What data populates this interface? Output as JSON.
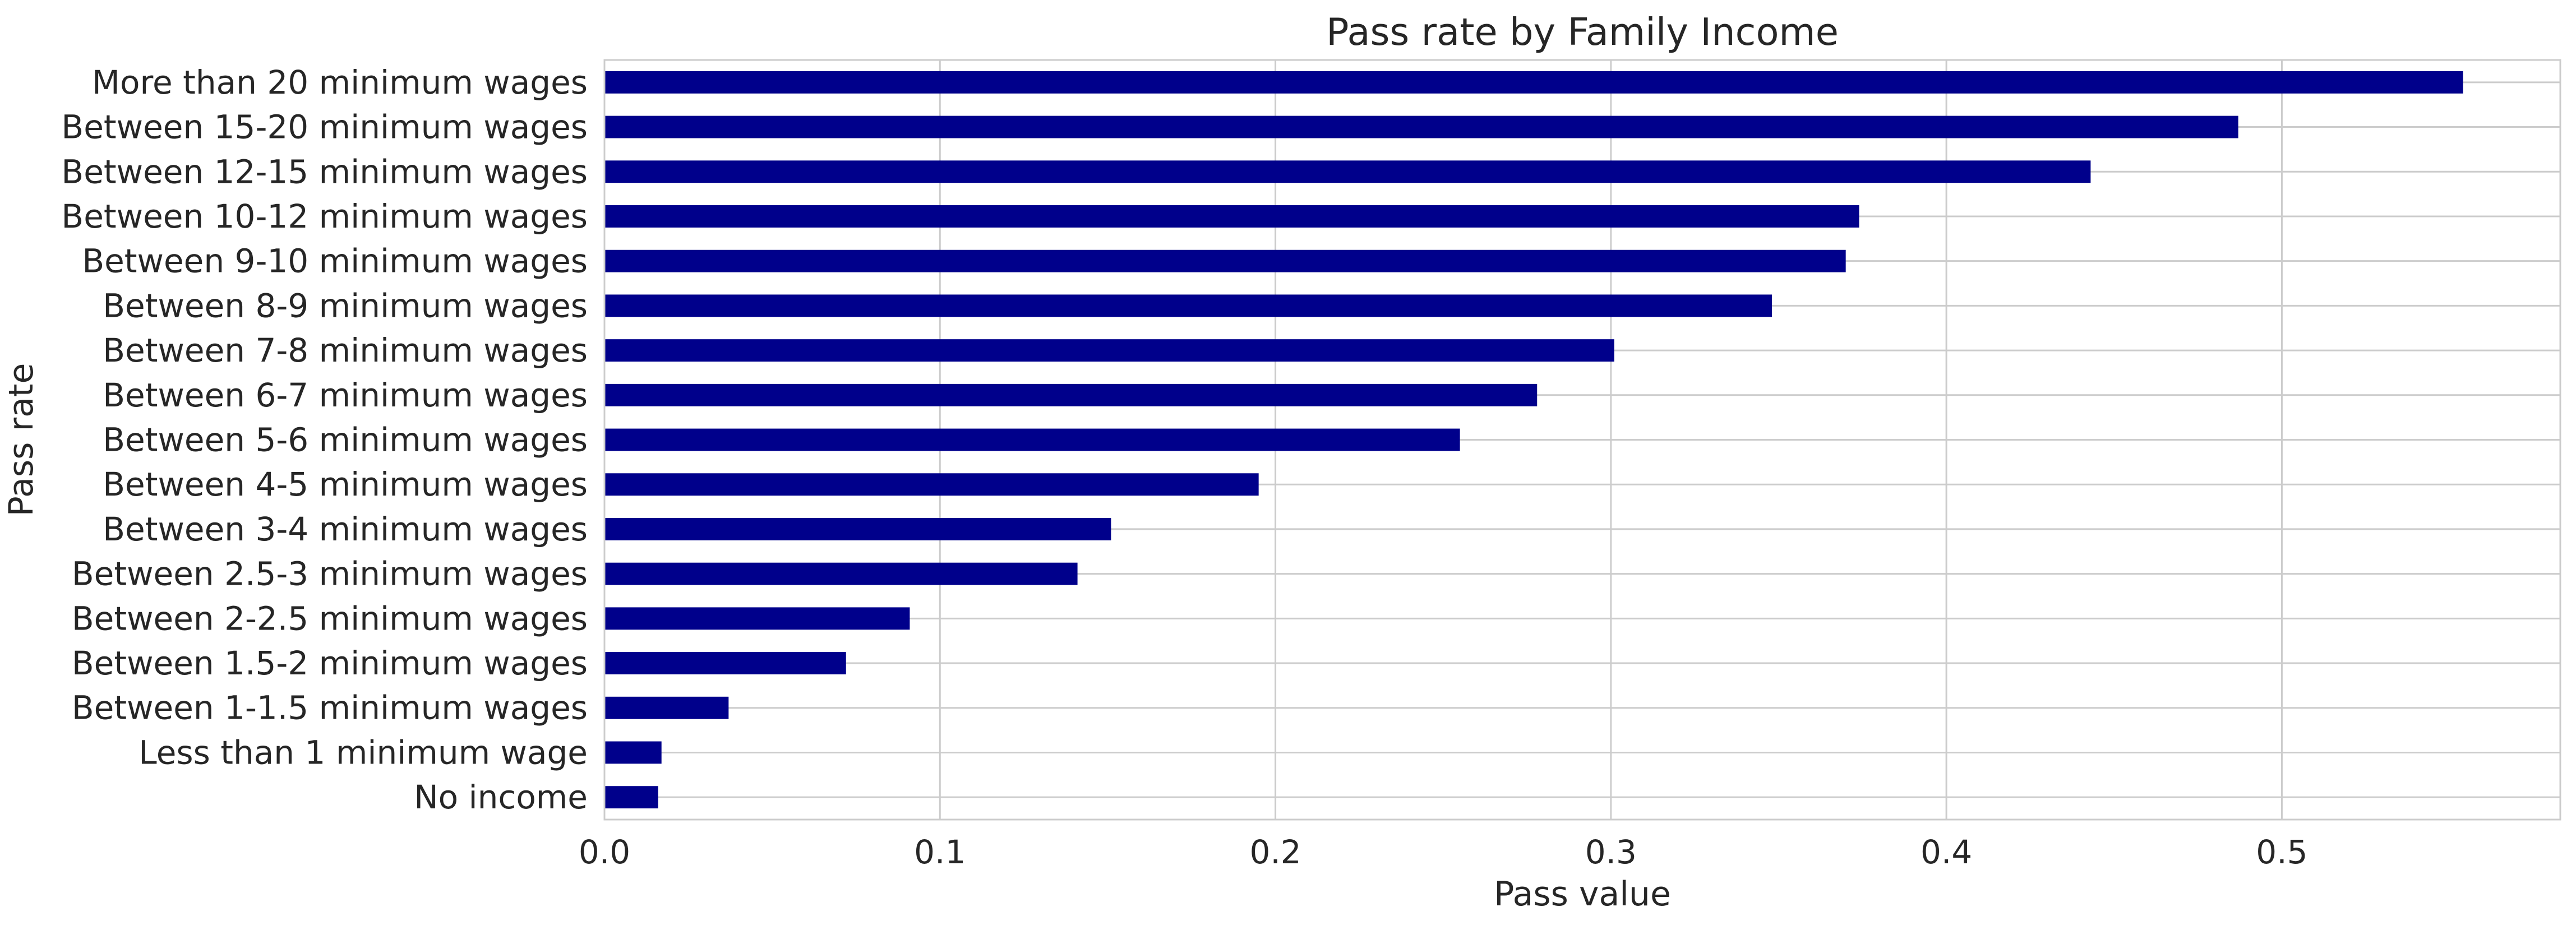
{
  "chart_data": {
    "type": "bar",
    "orientation": "horizontal",
    "title": "Pass rate by Family Income",
    "xlabel": "Pass value",
    "ylabel": "Pass rate",
    "xlim": [
      0,
      0.583
    ],
    "xticks": [
      "0.0",
      "0.1",
      "0.2",
      "0.3",
      "0.4",
      "0.5"
    ],
    "grid": true,
    "bar_color": "#00008b",
    "categories": [
      "No income",
      "Less than 1 minimum wage",
      "Between 1-1.5 minimum wages",
      "Between 1.5-2 minimum wages",
      "Between 2-2.5 minimum wages",
      "Between 2.5-3 minimum wages",
      "Between 3-4 minimum wages",
      "Between 4-5 minimum wages",
      "Between 5-6 minimum wages",
      "Between 6-7 minimum wages",
      "Between 7-8 minimum wages",
      "Between 8-9 minimum wages",
      "Between 9-10 minimum wages",
      "Between 10-12 minimum wages",
      "Between 12-15 minimum wages",
      "Between 15-20 minimum wages",
      "More than 20 minimum wages"
    ],
    "values": [
      0.016,
      0.017,
      0.037,
      0.072,
      0.091,
      0.141,
      0.151,
      0.195,
      0.255,
      0.278,
      0.301,
      0.348,
      0.37,
      0.374,
      0.443,
      0.487,
      0.554
    ]
  }
}
